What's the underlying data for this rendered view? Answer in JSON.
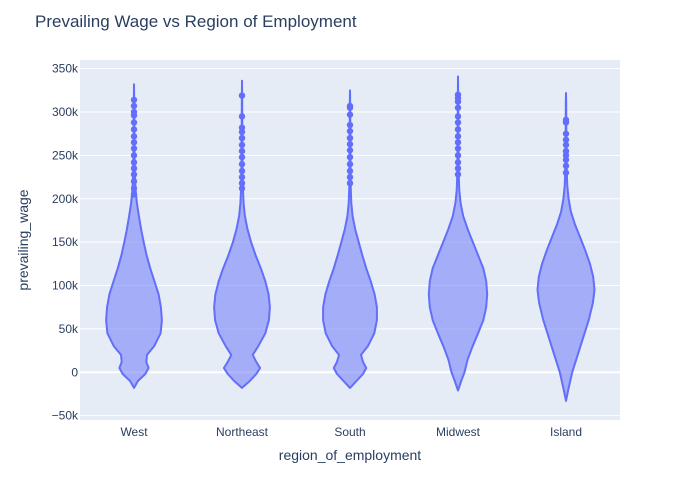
{
  "chart_data": {
    "type": "violin",
    "title": "Prevailing Wage vs Region of Employment",
    "xlabel": "region_of_employment",
    "ylabel": "prevailing_wage",
    "ylim": [
      -55000,
      360000
    ],
    "yticks": [
      -50000,
      0,
      50000,
      100000,
      150000,
      200000,
      250000,
      300000,
      350000
    ],
    "ytick_labels": [
      "−50k",
      "0",
      "50k",
      "100k",
      "150k",
      "200k",
      "250k",
      "300k",
      "350k"
    ],
    "categories": [
      "West",
      "Northeast",
      "South",
      "Midwest",
      "Island"
    ],
    "grid": true,
    "colors": {
      "violin_fill": "#636efa",
      "plot_bg": "#e5ecf6",
      "grid": "#ffffff",
      "text": "#2a3f5f"
    },
    "violins": [
      {
        "category": "West",
        "y_min": -18000,
        "y_max": 332000,
        "density": [
          [
            -18000,
            0
          ],
          [
            -10000,
            0.12
          ],
          [
            -2000,
            0.35
          ],
          [
            5000,
            0.45
          ],
          [
            12000,
            0.38
          ],
          [
            20000,
            0.4
          ],
          [
            30000,
            0.62
          ],
          [
            45000,
            0.82
          ],
          [
            60000,
            0.86
          ],
          [
            75000,
            0.83
          ],
          [
            90000,
            0.76
          ],
          [
            105000,
            0.63
          ],
          [
            120000,
            0.5
          ],
          [
            135000,
            0.39
          ],
          [
            150000,
            0.3
          ],
          [
            165000,
            0.22
          ],
          [
            180000,
            0.15
          ],
          [
            195000,
            0.09
          ],
          [
            210000,
            0.05
          ],
          [
            225000,
            0.03
          ],
          [
            250000,
            0.015
          ],
          [
            280000,
            0.008
          ],
          [
            310000,
            0.005
          ],
          [
            332000,
            0
          ]
        ],
        "outliers": [
          205000,
          212000,
          220000,
          228000,
          235000,
          242000,
          250000,
          258000,
          265000,
          272000,
          280000,
          288000,
          296000,
          300000,
          307000,
          314000
        ]
      },
      {
        "category": "Northeast",
        "y_min": -18000,
        "y_max": 336000,
        "density": [
          [
            -18000,
            0
          ],
          [
            -10000,
            0.24
          ],
          [
            -2000,
            0.44
          ],
          [
            5000,
            0.56
          ],
          [
            12000,
            0.44
          ],
          [
            20000,
            0.33
          ],
          [
            30000,
            0.5
          ],
          [
            45000,
            0.72
          ],
          [
            60000,
            0.83
          ],
          [
            75000,
            0.86
          ],
          [
            90000,
            0.82
          ],
          [
            105000,
            0.72
          ],
          [
            120000,
            0.58
          ],
          [
            135000,
            0.42
          ],
          [
            150000,
            0.28
          ],
          [
            165000,
            0.17
          ],
          [
            180000,
            0.09
          ],
          [
            195000,
            0.05
          ],
          [
            210000,
            0.03
          ],
          [
            225000,
            0.02
          ],
          [
            250000,
            0.012
          ],
          [
            280000,
            0.008
          ],
          [
            310000,
            0.005
          ],
          [
            336000,
            0
          ]
        ],
        "outliers": [
          212000,
          218000,
          225000,
          232000,
          240000,
          248000,
          255000,
          262000,
          270000,
          277000,
          282000,
          295000,
          319000
        ]
      },
      {
        "category": "South",
        "y_min": -18000,
        "y_max": 325000,
        "density": [
          [
            -18000,
            0
          ],
          [
            -10000,
            0.2
          ],
          [
            -2000,
            0.4
          ],
          [
            5000,
            0.5
          ],
          [
            12000,
            0.4
          ],
          [
            20000,
            0.34
          ],
          [
            30000,
            0.55
          ],
          [
            45000,
            0.75
          ],
          [
            60000,
            0.83
          ],
          [
            75000,
            0.83
          ],
          [
            90000,
            0.76
          ],
          [
            105000,
            0.64
          ],
          [
            120000,
            0.5
          ],
          [
            135000,
            0.38
          ],
          [
            150000,
            0.27
          ],
          [
            165000,
            0.16
          ],
          [
            180000,
            0.08
          ],
          [
            195000,
            0.04
          ],
          [
            210000,
            0.025
          ],
          [
            225000,
            0.02
          ],
          [
            250000,
            0.012
          ],
          [
            280000,
            0.008
          ],
          [
            310000,
            0.005
          ],
          [
            325000,
            0
          ]
        ],
        "outliers": [
          218000,
          225000,
          232000,
          240000,
          248000,
          256000,
          263000,
          270000,
          278000,
          285000,
          297000,
          305000,
          307000
        ]
      },
      {
        "category": "Midwest",
        "y_min": -21000,
        "y_max": 341000,
        "density": [
          [
            -21000,
            0
          ],
          [
            -10000,
            0.1
          ],
          [
            0,
            0.2
          ],
          [
            15000,
            0.3
          ],
          [
            30000,
            0.45
          ],
          [
            45000,
            0.62
          ],
          [
            60000,
            0.78
          ],
          [
            75000,
            0.87
          ],
          [
            90000,
            0.9
          ],
          [
            105000,
            0.87
          ],
          [
            120000,
            0.78
          ],
          [
            135000,
            0.62
          ],
          [
            150000,
            0.46
          ],
          [
            165000,
            0.3
          ],
          [
            180000,
            0.16
          ],
          [
            195000,
            0.08
          ],
          [
            210000,
            0.04
          ],
          [
            225000,
            0.025
          ],
          [
            250000,
            0.015
          ],
          [
            280000,
            0.01
          ],
          [
            310000,
            0.006
          ],
          [
            341000,
            0
          ]
        ],
        "outliers": [
          228000,
          235000,
          242000,
          250000,
          258000,
          265000,
          272000,
          280000,
          288000,
          295000,
          305000,
          312000,
          316000,
          320000
        ]
      },
      {
        "category": "Island",
        "y_min": -33000,
        "y_max": 322000,
        "density": [
          [
            -33000,
            0
          ],
          [
            -20000,
            0.07
          ],
          [
            0,
            0.19
          ],
          [
            20000,
            0.36
          ],
          [
            40000,
            0.53
          ],
          [
            60000,
            0.7
          ],
          [
            80000,
            0.83
          ],
          [
            95000,
            0.88
          ],
          [
            110000,
            0.84
          ],
          [
            125000,
            0.74
          ],
          [
            140000,
            0.6
          ],
          [
            155000,
            0.44
          ],
          [
            170000,
            0.28
          ],
          [
            185000,
            0.15
          ],
          [
            200000,
            0.08
          ],
          [
            215000,
            0.04
          ],
          [
            230000,
            0.025
          ],
          [
            250000,
            0.015
          ],
          [
            280000,
            0.01
          ],
          [
            310000,
            0.006
          ],
          [
            322000,
            0
          ]
        ],
        "outliers": [
          230000,
          238000,
          245000,
          250000,
          255000,
          262000,
          268000,
          275000,
          288000,
          291000
        ]
      }
    ]
  }
}
